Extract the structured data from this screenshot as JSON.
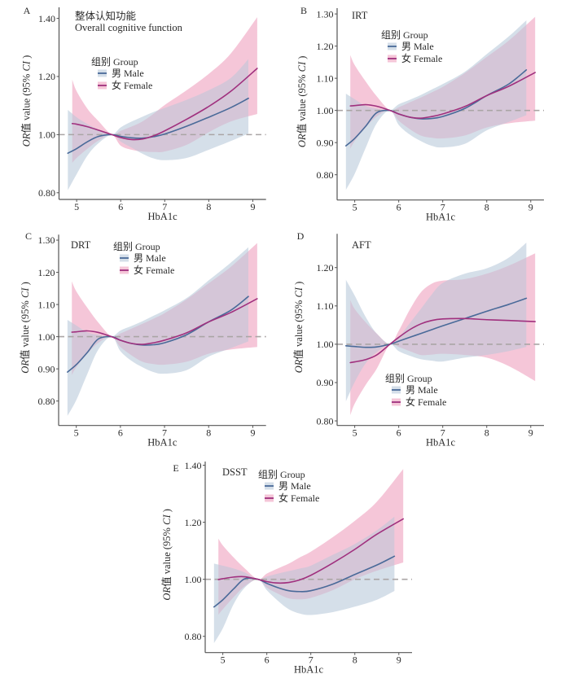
{
  "colors": {
    "male_line": "#4a6a99",
    "male_band": "#d5dfe9",
    "female_line": "#a0307e",
    "female_band": "#f5c6d8",
    "reference_line": "#aaa5a5",
    "axis": "#555555"
  },
  "chart_data": [
    {
      "panel": "A",
      "type": "line",
      "title": "整体认知功能",
      "subtitle": "Overall cognitive function",
      "xlabel": "HbA1c",
      "ylabel_parts": [
        {
          "text": "OR",
          "italic": true
        },
        {
          "text": "值 value (95% ",
          "italic": false
        },
        {
          "text": "CI",
          "italic": true
        },
        {
          "text": " )",
          "italic": false
        }
      ],
      "xlim": [
        4.6,
        9.3
      ],
      "ylim": [
        0.777,
        1.438
      ],
      "xticks": [
        5,
        6,
        7,
        8,
        9
      ],
      "xticklabels": [
        "5",
        "6",
        "7",
        "8",
        "9"
      ],
      "yticks": [
        0.8,
        1.0,
        1.2,
        1.4
      ],
      "yticklabels": [
        "0.80",
        "1.00",
        "1.20",
        "1.40"
      ],
      "reference_y": 1.0,
      "grid": false,
      "legend": {
        "title": "组别 Group",
        "placement": "upper-left"
      },
      "series": [
        {
          "name": "男 Male",
          "key": "male",
          "x": [
            4.8,
            5.0,
            5.25,
            5.5,
            5.8,
            6.0,
            6.25,
            6.5,
            6.75,
            7.0,
            7.5,
            8.0,
            8.5,
            8.9
          ],
          "y": [
            0.936,
            0.952,
            0.976,
            0.994,
            1.0,
            0.994,
            0.989,
            0.988,
            0.993,
            1.002,
            1.029,
            1.06,
            1.093,
            1.125
          ],
          "upper": [
            1.085,
            1.06,
            1.036,
            1.017,
            1.0,
            1.025,
            1.045,
            1.062,
            1.078,
            1.092,
            1.12,
            1.153,
            1.195,
            1.26
          ],
          "lower": [
            0.809,
            0.864,
            0.929,
            0.971,
            1.0,
            0.976,
            0.955,
            0.934,
            0.918,
            0.912,
            0.92,
            0.948,
            0.978,
            1.004
          ]
        },
        {
          "name": "女 Female",
          "key": "female",
          "x": [
            4.9,
            5.0,
            5.25,
            5.5,
            5.8,
            6.0,
            6.25,
            6.5,
            6.75,
            7.0,
            7.5,
            8.0,
            8.5,
            9.1
          ],
          "y": [
            1.038,
            1.036,
            1.027,
            1.015,
            1.0,
            0.99,
            0.983,
            0.985,
            0.996,
            1.013,
            1.053,
            1.097,
            1.149,
            1.228
          ],
          "upper": [
            1.189,
            1.149,
            1.088,
            1.046,
            1.0,
            1.013,
            1.028,
            1.046,
            1.072,
            1.102,
            1.153,
            1.209,
            1.279,
            1.404
          ],
          "lower": [
            0.903,
            0.92,
            0.952,
            0.98,
            1.0,
            0.962,
            0.948,
            0.942,
            0.94,
            0.942,
            0.965,
            1.008,
            1.045,
            1.071
          ]
        }
      ]
    },
    {
      "panel": "B",
      "type": "line",
      "title": "IRT",
      "xlabel": "HbA1c",
      "ylabel_parts": [
        {
          "text": "OR",
          "italic": true
        },
        {
          "text": "值 value (95% ",
          "italic": false
        },
        {
          "text": "CI",
          "italic": true
        },
        {
          "text": " )",
          "italic": false
        }
      ],
      "xlim": [
        4.6,
        9.3
      ],
      "ylim": [
        0.7215,
        1.318
      ],
      "xticks": [
        5,
        6,
        7,
        8,
        9
      ],
      "xticklabels": [
        "5",
        "6",
        "7",
        "8",
        "9"
      ],
      "yticks": [
        0.8,
        0.9,
        1.0,
        1.1,
        1.2,
        1.3
      ],
      "yticklabels": [
        "0.80",
        "0.90",
        "1.00",
        "1.10",
        "1.20",
        "1.30"
      ],
      "reference_y": 1.0,
      "grid": false,
      "legend": {
        "title": "组别 Group",
        "placement": "upper-left"
      },
      "series": [
        {
          "name": "男 Male",
          "key": "male",
          "x": [
            4.8,
            5.0,
            5.25,
            5.5,
            5.8,
            6.0,
            6.25,
            6.5,
            6.75,
            7.0,
            7.5,
            8.0,
            8.5,
            8.9
          ],
          "y": [
            0.89,
            0.913,
            0.951,
            0.993,
            1.0,
            0.989,
            0.979,
            0.974,
            0.975,
            0.981,
            1.006,
            1.046,
            1.082,
            1.126
          ],
          "upper": [
            1.052,
            1.035,
            1.014,
            1.006,
            1.0,
            1.019,
            1.033,
            1.048,
            1.065,
            1.082,
            1.12,
            1.175,
            1.23,
            1.28
          ],
          "lower": [
            0.753,
            0.803,
            0.884,
            0.96,
            1.0,
            0.955,
            0.925,
            0.905,
            0.89,
            0.885,
            0.896,
            0.938,
            0.964,
            0.985
          ]
        },
        {
          "name": "女 Female",
          "key": "female",
          "x": [
            4.9,
            5.0,
            5.25,
            5.5,
            5.8,
            6.0,
            6.25,
            6.5,
            6.75,
            7.0,
            7.5,
            8.0,
            8.5,
            9.1
          ],
          "y": [
            1.014,
            1.015,
            1.018,
            1.013,
            1.0,
            0.989,
            0.979,
            0.976,
            0.981,
            0.989,
            1.012,
            1.046,
            1.075,
            1.118
          ],
          "upper": [
            1.172,
            1.141,
            1.09,
            1.044,
            1.0,
            1.01,
            1.025,
            1.04,
            1.056,
            1.073,
            1.116,
            1.166,
            1.217,
            1.291
          ],
          "lower": [
            0.881,
            0.905,
            0.947,
            0.981,
            1.0,
            0.968,
            0.942,
            0.922,
            0.915,
            0.913,
            0.922,
            0.947,
            0.96,
            0.968
          ]
        }
      ]
    },
    {
      "panel": "C",
      "type": "line",
      "title": "DRT",
      "xlabel": "HbA1c",
      "ylabel_parts": [
        {
          "text": "OR",
          "italic": true
        },
        {
          "text": "值 value (95% ",
          "italic": false
        },
        {
          "text": "CI",
          "italic": true
        },
        {
          "text": " )",
          "italic": false
        }
      ],
      "xlim": [
        4.6,
        9.3
      ],
      "ylim": [
        0.724,
        1.317
      ],
      "xticks": [
        5,
        6,
        7,
        8,
        9
      ],
      "xticklabels": [
        "5",
        "6",
        "7",
        "8",
        "9"
      ],
      "yticks": [
        0.8,
        0.9,
        1.0,
        1.1,
        1.2,
        1.3
      ],
      "yticklabels": [
        "0.80",
        "0.90",
        "1.00",
        "1.10",
        "1.20",
        "1.30"
      ],
      "reference_y": 1.0,
      "grid": false,
      "legend": {
        "title": "组别 Group",
        "placement": "top"
      },
      "series": [
        {
          "name": "男 Male",
          "key": "male",
          "x": [
            4.8,
            5.0,
            5.25,
            5.5,
            5.8,
            6.0,
            6.25,
            6.5,
            6.75,
            7.0,
            7.5,
            8.0,
            8.5,
            8.9
          ],
          "y": [
            0.89,
            0.913,
            0.951,
            0.993,
            1.0,
            0.989,
            0.979,
            0.974,
            0.975,
            0.981,
            1.006,
            1.046,
            1.082,
            1.125
          ],
          "upper": [
            1.052,
            1.035,
            1.014,
            1.006,
            1.0,
            1.019,
            1.033,
            1.048,
            1.065,
            1.082,
            1.12,
            1.175,
            1.23,
            1.278
          ],
          "lower": [
            0.754,
            0.803,
            0.884,
            0.96,
            1.0,
            0.955,
            0.925,
            0.905,
            0.89,
            0.885,
            0.896,
            0.938,
            0.964,
            0.985
          ]
        },
        {
          "name": "女 Female",
          "key": "female",
          "x": [
            4.9,
            5.0,
            5.25,
            5.5,
            5.8,
            6.0,
            6.25,
            6.5,
            6.75,
            7.0,
            7.5,
            8.0,
            8.5,
            9.1
          ],
          "y": [
            1.014,
            1.015,
            1.018,
            1.013,
            1.0,
            0.989,
            0.979,
            0.976,
            0.981,
            0.989,
            1.012,
            1.046,
            1.075,
            1.118
          ],
          "upper": [
            1.172,
            1.141,
            1.09,
            1.044,
            1.0,
            1.01,
            1.025,
            1.04,
            1.056,
            1.073,
            1.116,
            1.166,
            1.217,
            1.291
          ],
          "lower": [
            0.881,
            0.905,
            0.947,
            0.981,
            1.0,
            0.968,
            0.942,
            0.922,
            0.915,
            0.913,
            0.922,
            0.947,
            0.96,
            0.968
          ]
        }
      ]
    },
    {
      "panel": "D",
      "type": "line",
      "title": "AFT",
      "xlabel": "HbA1c",
      "ylabel_parts": [
        {
          "text": "OR",
          "italic": true
        },
        {
          "text": "值 value (95% ",
          "italic": false
        },
        {
          "text": "CI",
          "italic": true
        },
        {
          "text": " )",
          "italic": false
        }
      ],
      "xlim": [
        4.6,
        9.3
      ],
      "ylim": [
        0.788,
        1.288
      ],
      "xticks": [
        5,
        6,
        7,
        8,
        9
      ],
      "xticklabels": [
        "5",
        "6",
        "7",
        "8",
        "9"
      ],
      "yticks": [
        0.8,
        0.9,
        1.0,
        1.1,
        1.2
      ],
      "yticklabels": [
        "0.80",
        "0.90",
        "1.00",
        "1.10",
        "1.20"
      ],
      "reference_y": 1.0,
      "grid": false,
      "legend": {
        "title": "组别 Group",
        "placement": "lower-center"
      },
      "series": [
        {
          "name": "男 Male",
          "key": "male",
          "x": [
            4.8,
            5.0,
            5.25,
            5.5,
            5.8,
            6.0,
            6.25,
            6.5,
            6.75,
            7.0,
            7.5,
            8.0,
            8.5,
            8.9
          ],
          "y": [
            0.996,
            0.994,
            0.992,
            0.993,
            1.0,
            1.008,
            1.018,
            1.028,
            1.038,
            1.048,
            1.067,
            1.086,
            1.104,
            1.12
          ],
          "upper": [
            1.168,
            1.127,
            1.071,
            1.028,
            1.0,
            1.018,
            1.055,
            1.092,
            1.13,
            1.16,
            1.184,
            1.198,
            1.226,
            1.265
          ],
          "lower": [
            0.851,
            0.901,
            0.95,
            0.979,
            1.0,
            0.982,
            0.97,
            0.961,
            0.957,
            0.955,
            0.965,
            0.972,
            0.982,
            0.993
          ]
        },
        {
          "name": "女 Female",
          "key": "female",
          "x": [
            4.9,
            5.0,
            5.25,
            5.5,
            5.8,
            6.0,
            6.25,
            6.5,
            6.75,
            7.0,
            7.5,
            8.0,
            8.5,
            9.1
          ],
          "y": [
            0.952,
            0.954,
            0.96,
            0.972,
            1.0,
            1.018,
            1.038,
            1.053,
            1.062,
            1.066,
            1.067,
            1.064,
            1.062,
            1.059
          ],
          "upper": [
            1.115,
            1.092,
            1.057,
            1.028,
            1.0,
            1.035,
            1.09,
            1.135,
            1.158,
            1.166,
            1.17,
            1.184,
            1.205,
            1.237
          ],
          "lower": [
            0.815,
            0.845,
            0.894,
            0.936,
            1.0,
            0.993,
            0.982,
            0.972,
            0.973,
            0.975,
            0.972,
            0.965,
            0.943,
            0.904
          ]
        }
      ]
    },
    {
      "panel": "E",
      "type": "line",
      "title": "DSST",
      "xlabel": "HbA1c",
      "ylabel_parts": [
        {
          "text": "OR",
          "italic": true
        },
        {
          "text": "值 value (95% ",
          "italic": false
        },
        {
          "text": "CI",
          "italic": true
        },
        {
          "text": " )",
          "italic": false
        }
      ],
      "xlim": [
        4.6,
        9.3
      ],
      "ylim": [
        0.743,
        1.413
      ],
      "xticks": [
        5,
        6,
        7,
        8,
        9
      ],
      "xticklabels": [
        "5",
        "6",
        "7",
        "8",
        "9"
      ],
      "yticks": [
        0.8,
        1.0,
        1.2,
        1.4
      ],
      "yticklabels": [
        "0.80",
        "1.00",
        "1.20",
        "1.40"
      ],
      "reference_y": 1.0,
      "grid": false,
      "legend": {
        "title": "组别 Group",
        "placement": "top"
      },
      "series": [
        {
          "name": "男 Male",
          "key": "male",
          "x": [
            4.8,
            5.0,
            5.25,
            5.5,
            5.8,
            6.0,
            6.25,
            6.5,
            6.75,
            7.0,
            7.5,
            8.0,
            8.5,
            8.9
          ],
          "y": [
            0.903,
            0.928,
            0.967,
            1.002,
            1.0,
            0.986,
            0.971,
            0.96,
            0.957,
            0.96,
            0.983,
            1.017,
            1.05,
            1.081
          ],
          "upper": [
            1.055,
            1.048,
            1.038,
            1.024,
            1.0,
            1.01,
            1.02,
            1.029,
            1.038,
            1.048,
            1.086,
            1.124,
            1.172,
            1.22
          ],
          "lower": [
            0.776,
            0.828,
            0.914,
            0.971,
            1.0,
            0.962,
            0.925,
            0.895,
            0.88,
            0.875,
            0.885,
            0.904,
            0.928,
            0.959
          ]
        },
        {
          "name": "女 Female",
          "key": "female",
          "x": [
            4.9,
            5.0,
            5.25,
            5.5,
            5.8,
            6.0,
            6.25,
            6.5,
            6.75,
            7.0,
            7.5,
            8.0,
            8.5,
            9.1
          ],
          "y": [
            0.999,
            1.002,
            1.008,
            1.009,
            1.0,
            0.992,
            0.987,
            0.989,
            0.998,
            1.014,
            1.057,
            1.105,
            1.158,
            1.212
          ],
          "upper": [
            1.143,
            1.119,
            1.076,
            1.038,
            1.0,
            1.02,
            1.038,
            1.055,
            1.077,
            1.097,
            1.148,
            1.205,
            1.272,
            1.387
          ],
          "lower": [
            0.876,
            0.895,
            0.938,
            0.976,
            1.0,
            0.971,
            0.95,
            0.933,
            0.93,
            0.935,
            0.962,
            1.0,
            1.03,
            1.059
          ]
        }
      ]
    }
  ]
}
